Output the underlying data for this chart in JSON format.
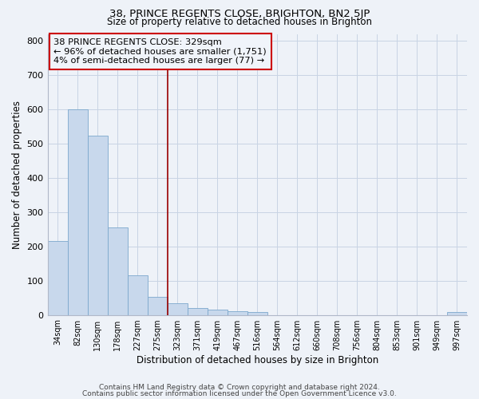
{
  "title": "38, PRINCE REGENTS CLOSE, BRIGHTON, BN2 5JP",
  "subtitle": "Size of property relative to detached houses in Brighton",
  "xlabel": "Distribution of detached houses by size in Brighton",
  "ylabel": "Number of detached properties",
  "bin_labels": [
    "34sqm",
    "82sqm",
    "130sqm",
    "178sqm",
    "227sqm",
    "275sqm",
    "323sqm",
    "371sqm",
    "419sqm",
    "467sqm",
    "516sqm",
    "564sqm",
    "612sqm",
    "660sqm",
    "708sqm",
    "756sqm",
    "804sqm",
    "853sqm",
    "901sqm",
    "949sqm",
    "997sqm"
  ],
  "bar_values": [
    215,
    600,
    522,
    255,
    115,
    52,
    33,
    20,
    15,
    10,
    8,
    0,
    0,
    0,
    0,
    0,
    0,
    0,
    0,
    0,
    8
  ],
  "bar_color": "#c8d8ec",
  "bar_edge_color": "#7ca8cc",
  "vline_x_index": 6,
  "vline_color": "#990000",
  "annotation_line1": "38 PRINCE REGENTS CLOSE: 329sqm",
  "annotation_line2": "← 96% of detached houses are smaller (1,751)",
  "annotation_line3": "4% of semi-detached houses are larger (77) →",
  "annotation_box_color": "#cc0000",
  "annotation_bg_color": "#f0f4fa",
  "ylim": [
    0,
    820
  ],
  "yticks": [
    0,
    100,
    200,
    300,
    400,
    500,
    600,
    700,
    800
  ],
  "grid_color": "#c8d4e4",
  "bg_color": "#eef2f8",
  "title_fontsize": 9.5,
  "subtitle_fontsize": 8.5,
  "footer_line1": "Contains HM Land Registry data © Crown copyright and database right 2024.",
  "footer_line2": "Contains public sector information licensed under the Open Government Licence v3.0."
}
